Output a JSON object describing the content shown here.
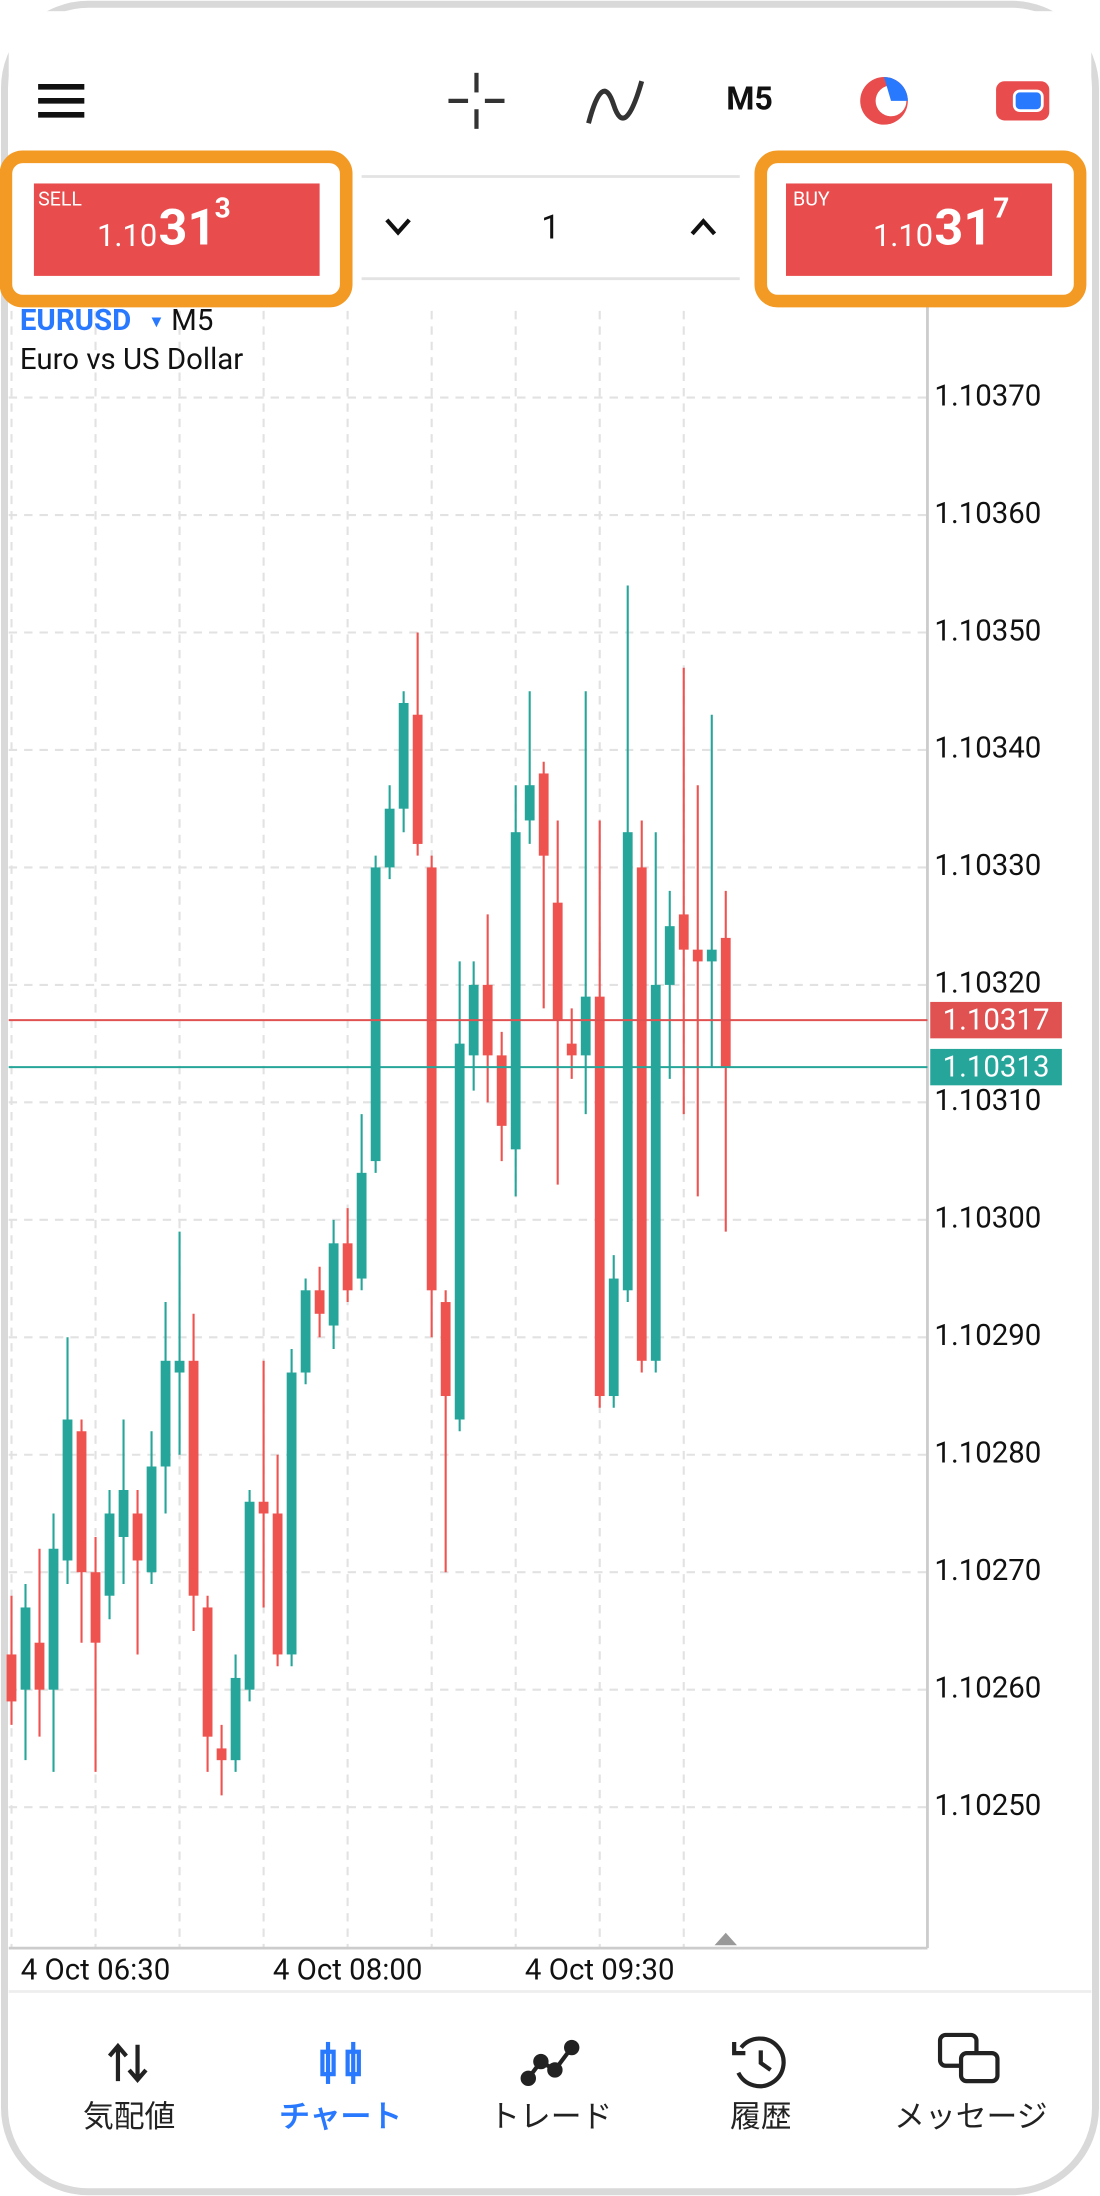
{
  "toolbar": {
    "timeframe": "M5"
  },
  "trade_panel": {
    "sell": {
      "label": "SELL",
      "price": [
        "1.10",
        "31",
        "3"
      ]
    },
    "volume": "1",
    "buy": {
      "label": "BUY",
      "price": [
        "1.10",
        "31",
        "7"
      ]
    }
  },
  "chart_data": {
    "type": "candlestick",
    "symbol": "EURUSD",
    "timeframe": "M5",
    "description": "Euro vs US Dollar",
    "categories": [
      null,
      null,
      null,
      null,
      null,
      null,
      "4 Oct 06:30",
      null,
      null,
      null,
      null,
      null,
      null,
      null,
      null,
      null,
      null,
      null,
      null,
      null,
      null,
      null,
      null,
      null,
      "4 Oct 08:00",
      null,
      null,
      null,
      null,
      null,
      null,
      null,
      null,
      null,
      null,
      null,
      null,
      null,
      null,
      null,
      null,
      null,
      "4 Oct 09:30",
      null,
      null,
      null,
      null,
      null,
      null,
      null,
      null,
      null
    ],
    "open": [
      1.10263,
      1.1026,
      1.10264,
      1.1026,
      1.10271,
      1.10282,
      1.1027,
      1.10268,
      1.10273,
      1.10275,
      1.1027,
      1.10279,
      1.10287,
      1.10288,
      1.10267,
      1.10255,
      1.10254,
      1.1026,
      1.10276,
      1.10275,
      1.10263,
      1.10287,
      1.10294,
      1.10291,
      1.10298,
      1.10295,
      1.10305,
      1.1033,
      1.10335,
      1.10343,
      1.1033,
      1.10293,
      1.10283,
      1.10314,
      1.1032,
      1.10314,
      1.10306,
      1.10334,
      1.10338,
      1.10327,
      1.10315,
      1.10314,
      1.10319,
      1.10285,
      1.10294,
      1.1033,
      1.10288,
      1.1032,
      1.10326,
      1.10323,
      1.10322,
      1.10324
    ],
    "high": [
      1.10268,
      1.10269,
      1.10272,
      1.10275,
      1.1029,
      1.10283,
      1.10273,
      1.10277,
      1.10283,
      1.10277,
      1.10282,
      1.10293,
      1.10299,
      1.10292,
      1.10268,
      1.10257,
      1.10263,
      1.10277,
      1.10288,
      1.1028,
      1.10289,
      1.10295,
      1.10296,
      1.103,
      1.10301,
      1.10309,
      1.10331,
      1.10337,
      1.10345,
      1.1035,
      1.10331,
      1.10294,
      1.10322,
      1.10322,
      1.10326,
      1.10316,
      1.10337,
      1.10345,
      1.10339,
      1.10334,
      1.10318,
      1.10345,
      1.10334,
      1.10297,
      1.10354,
      1.10334,
      1.10333,
      1.10328,
      1.10347,
      1.10337,
      1.10343,
      1.10328
    ],
    "low": [
      1.10257,
      1.10254,
      1.10256,
      1.10253,
      1.10269,
      1.10264,
      1.10253,
      1.10266,
      1.10269,
      1.10263,
      1.10269,
      1.10275,
      1.1028,
      1.10265,
      1.10253,
      1.10251,
      1.10253,
      1.10259,
      1.10267,
      1.10262,
      1.10262,
      1.10286,
      1.1029,
      1.10289,
      1.10293,
      1.10294,
      1.10304,
      1.10329,
      1.10333,
      1.10331,
      1.1029,
      1.1027,
      1.10282,
      1.10311,
      1.1031,
      1.10305,
      1.10302,
      1.10332,
      1.10318,
      1.10303,
      1.10312,
      1.10309,
      1.10284,
      1.10284,
      1.10293,
      1.10287,
      1.10287,
      1.10312,
      1.10309,
      1.10302,
      1.10313,
      1.10299
    ],
    "close": [
      1.10259,
      1.10267,
      1.1026,
      1.10272,
      1.10283,
      1.1027,
      1.10264,
      1.10275,
      1.10277,
      1.10271,
      1.10279,
      1.10288,
      1.10288,
      1.10268,
      1.10256,
      1.10254,
      1.10261,
      1.10276,
      1.10275,
      1.10263,
      1.10287,
      1.10294,
      1.10292,
      1.10298,
      1.10294,
      1.10304,
      1.1033,
      1.10335,
      1.10344,
      1.10332,
      1.10294,
      1.10285,
      1.10315,
      1.1032,
      1.10314,
      1.10308,
      1.10333,
      1.10337,
      1.10331,
      1.10317,
      1.10314,
      1.10319,
      1.10285,
      1.10295,
      1.10333,
      1.10288,
      1.1032,
      1.10325,
      1.10323,
      1.10322,
      1.10323,
      1.10313
    ],
    "up_color": "#26a69a",
    "down_color": "#ef5350",
    "ylim": [
      1.10238,
      1.1038
    ],
    "yticks": [
      {
        "value": 1.1025,
        "label": "1.10250"
      },
      {
        "value": 1.1026,
        "label": "1.10260"
      },
      {
        "value": 1.1027,
        "label": "1.10270"
      },
      {
        "value": 1.1028,
        "label": "1.10280"
      },
      {
        "value": 1.1029,
        "label": "1.10290"
      },
      {
        "value": 1.103,
        "label": "1.10300"
      },
      {
        "value": 1.1031,
        "label": "1.10310"
      },
      {
        "value": 1.1032,
        "label": "1.10320"
      },
      {
        "value": 1.1033,
        "label": "1.10330"
      },
      {
        "value": 1.1034,
        "label": "1.10340"
      },
      {
        "value": 1.1035,
        "label": "1.10350"
      },
      {
        "value": 1.1036,
        "label": "1.10360"
      },
      {
        "value": 1.1037,
        "label": "1.10370"
      }
    ],
    "grid": true,
    "price_lines": [
      {
        "value": 1.10317,
        "color": "#e05252"
      },
      {
        "value": 1.10313,
        "color": "#26a69a"
      }
    ]
  },
  "nav": {
    "items": [
      "気配値",
      "チャート",
      "トレード",
      "履歴",
      "メッセージ"
    ],
    "active": 1
  }
}
